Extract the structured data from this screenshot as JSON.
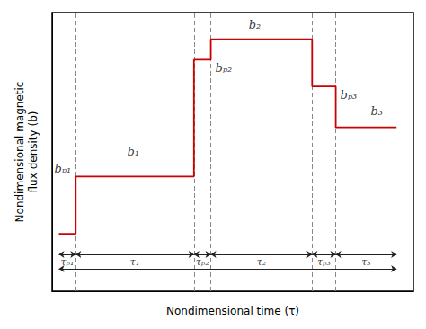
{
  "chart_data": {
    "type": "line",
    "xlabel": "Nondimensional time (τ)",
    "ylabel": "Nondimensional magnetic\nflux density (b)",
    "x": [
      0.0,
      0.05,
      0.05,
      0.4,
      0.4,
      0.45,
      0.45,
      0.75,
      0.75,
      0.82,
      0.82,
      1.0
    ],
    "values": [
      0.0,
      0.0,
      0.28,
      0.28,
      0.85,
      0.85,
      0.95,
      0.95,
      0.72,
      0.72,
      0.52,
      0.52
    ],
    "color": "#cc0000",
    "xlim": [
      -0.02,
      1.05
    ],
    "ylim": [
      -0.28,
      1.08
    ],
    "tick_labels": false,
    "grid": false,
    "vlines": {
      "values": [
        0.05,
        0.4,
        0.45,
        0.75,
        0.82
      ],
      "color": "#888888",
      "line_style": "dashed"
    },
    "intervals": {
      "color": "#222222",
      "items": [
        {
          "text": "τₚ₁",
          "start": 0.0,
          "end": 0.05,
          "y": -0.1
        },
        {
          "text": "τ₁",
          "start": 0.05,
          "end": 0.4,
          "y": -0.1
        },
        {
          "text": "τₚ₂",
          "start": 0.4,
          "end": 0.45,
          "y": -0.1
        },
        {
          "text": "τ₂",
          "start": 0.45,
          "end": 0.75,
          "y": -0.1
        },
        {
          "text": "τₚ₃",
          "start": 0.75,
          "end": 0.82,
          "y": -0.1
        },
        {
          "text": "τ₃",
          "start": 0.82,
          "end": 1.0,
          "y": -0.1
        }
      ]
    },
    "bracket": {
      "start": 0.0,
      "end": 1.0,
      "y": -0.17
    },
    "annotations": [
      {
        "text": "b₁",
        "x": 0.22,
        "y": 0.35
      },
      {
        "text": "b₂",
        "x": 0.58,
        "y": 0.97
      },
      {
        "text": "b₃",
        "x": 0.91,
        "y": 0.6
      },
      {
        "text": "bₚ₁",
        "x": 0.05,
        "y": 0.28
      },
      {
        "text": "bₚ₂",
        "x": 0.45,
        "y": 0.85
      },
      {
        "text": "bₚ₃",
        "x": 0.82,
        "y": 0.72
      }
    ]
  }
}
